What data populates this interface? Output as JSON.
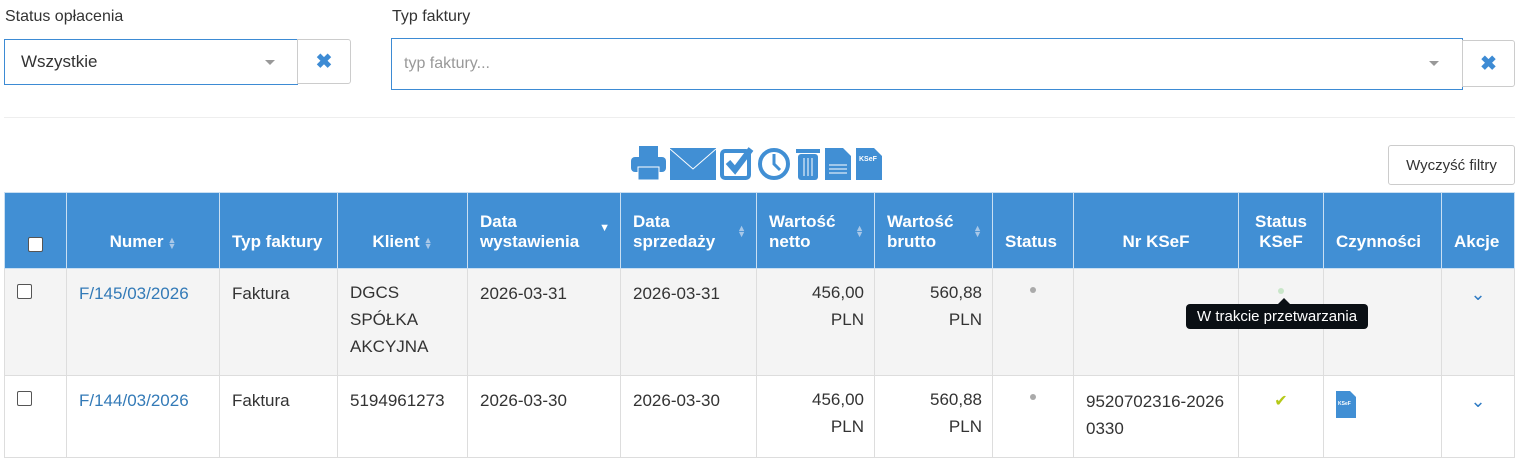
{
  "filters": {
    "payment_status": {
      "label": "Status opłacenia",
      "value": "Wszystkie"
    },
    "invoice_type": {
      "label": "Typ faktury",
      "placeholder": "typ faktury..."
    },
    "clear_icon": "times-icon"
  },
  "toolbar": {
    "icons": [
      "print-icon",
      "envelope-icon",
      "checkbox-icon",
      "clock-icon",
      "trash-icon",
      "document-icon",
      "ksef-document-icon"
    ],
    "clear_filters": "Wyczyść filtry"
  },
  "table": {
    "headers": [
      "Numer",
      "Typ faktury",
      "Klient",
      "Data wystawienia",
      "Data sprzedaży",
      "Wartość netto",
      "Wartość brutto",
      "Status",
      "Nr KSeF",
      "Status KSeF",
      "Czynności",
      "Akcje"
    ],
    "rows": [
      {
        "numer": "F/145/03/2026",
        "typ": "Faktura",
        "klient": "DGCS SPÓŁKA AKCYJNA",
        "data_wyst": "2026-03-31",
        "data_sprz": "2026-03-31",
        "netto": "456,00 PLN",
        "brutto": "560,88 PLN",
        "nr_ksef": "",
        "status_ksef": "processing"
      },
      {
        "numer": "F/144/03/2026",
        "typ": "Faktura",
        "klient": "5194961273",
        "data_wyst": "2026-03-30",
        "data_sprz": "2026-03-30",
        "netto": "456,00 PLN",
        "brutto": "560,88 PLN",
        "nr_ksef": "9520702316-20260330",
        "status_ksef": "accepted"
      }
    ]
  },
  "tooltip": "W trakcie przetwarzania",
  "colors": {
    "accent": "#418fd4",
    "ok": "#b5c918"
  }
}
